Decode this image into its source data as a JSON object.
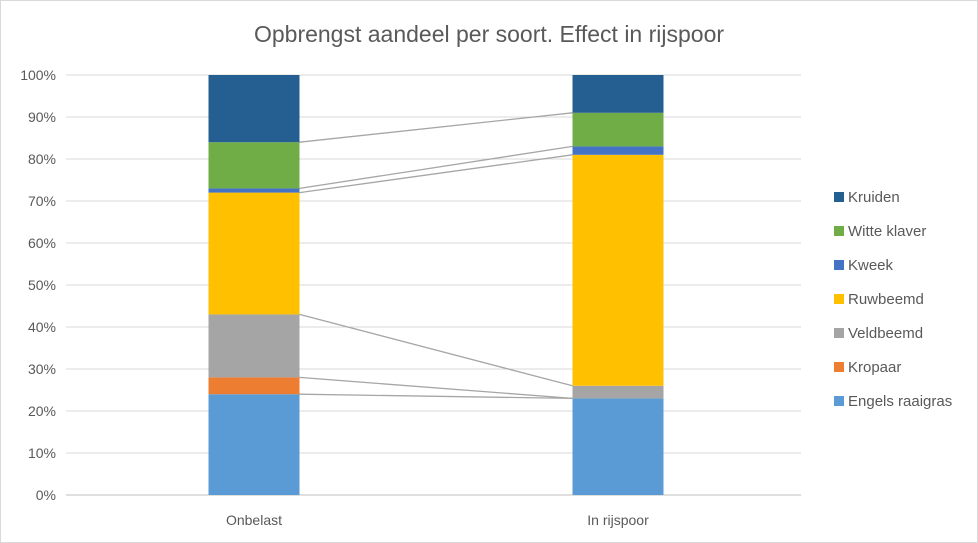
{
  "chart_data": {
    "type": "bar",
    "stacked": true,
    "normalized": "percent",
    "title": "Opbrengst aandeel per soort. Effect in rijspoor",
    "xlabel": "",
    "ylabel": "",
    "ylim": [
      0,
      100
    ],
    "y_ticks": [
      "0%",
      "10%",
      "20%",
      "30%",
      "40%",
      "50%",
      "60%",
      "70%",
      "80%",
      "90%",
      "100%"
    ],
    "categories": [
      "Onbelast",
      "In rijspoor"
    ],
    "series": [
      {
        "name": "Engels raaigras",
        "color": "#5b9bd5",
        "values": [
          24,
          23
        ]
      },
      {
        "name": "Kropaar",
        "color": "#ed7d31",
        "values": [
          4,
          0
        ]
      },
      {
        "name": "Veldbeemd",
        "color": "#a5a5a5",
        "values": [
          15,
          3
        ]
      },
      {
        "name": "Ruwbeemd",
        "color": "#ffc000",
        "values": [
          29,
          55
        ]
      },
      {
        "name": "Kweek",
        "color": "#4472c4",
        "values": [
          1,
          2
        ]
      },
      {
        "name": "Witte klaver",
        "color": "#70ad47",
        "values": [
          11,
          8
        ]
      },
      {
        "name": "Kruiden",
        "color": "#255e91",
        "values": [
          16,
          9
        ]
      }
    ],
    "grid": true,
    "series_lines": true,
    "legend_position": "right"
  }
}
